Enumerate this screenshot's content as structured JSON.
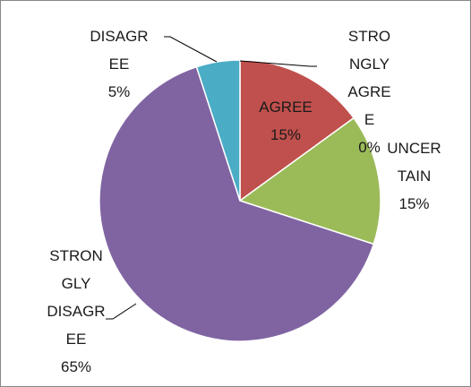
{
  "chart_data": {
    "type": "pie",
    "categories": [
      "STRONGLY AGREE",
      "AGREE",
      "UNCERTAIN",
      "STRONGLY DISAGREE",
      "DISAGREE"
    ],
    "values": [
      0,
      15,
      15,
      65,
      5
    ],
    "value_labels": [
      "0%",
      "15%",
      "15%",
      "65%",
      "5%"
    ],
    "colors": [
      "#4f81bd",
      "#c0504d",
      "#9bbb59",
      "#8064a2",
      "#4bacc6"
    ]
  }
}
